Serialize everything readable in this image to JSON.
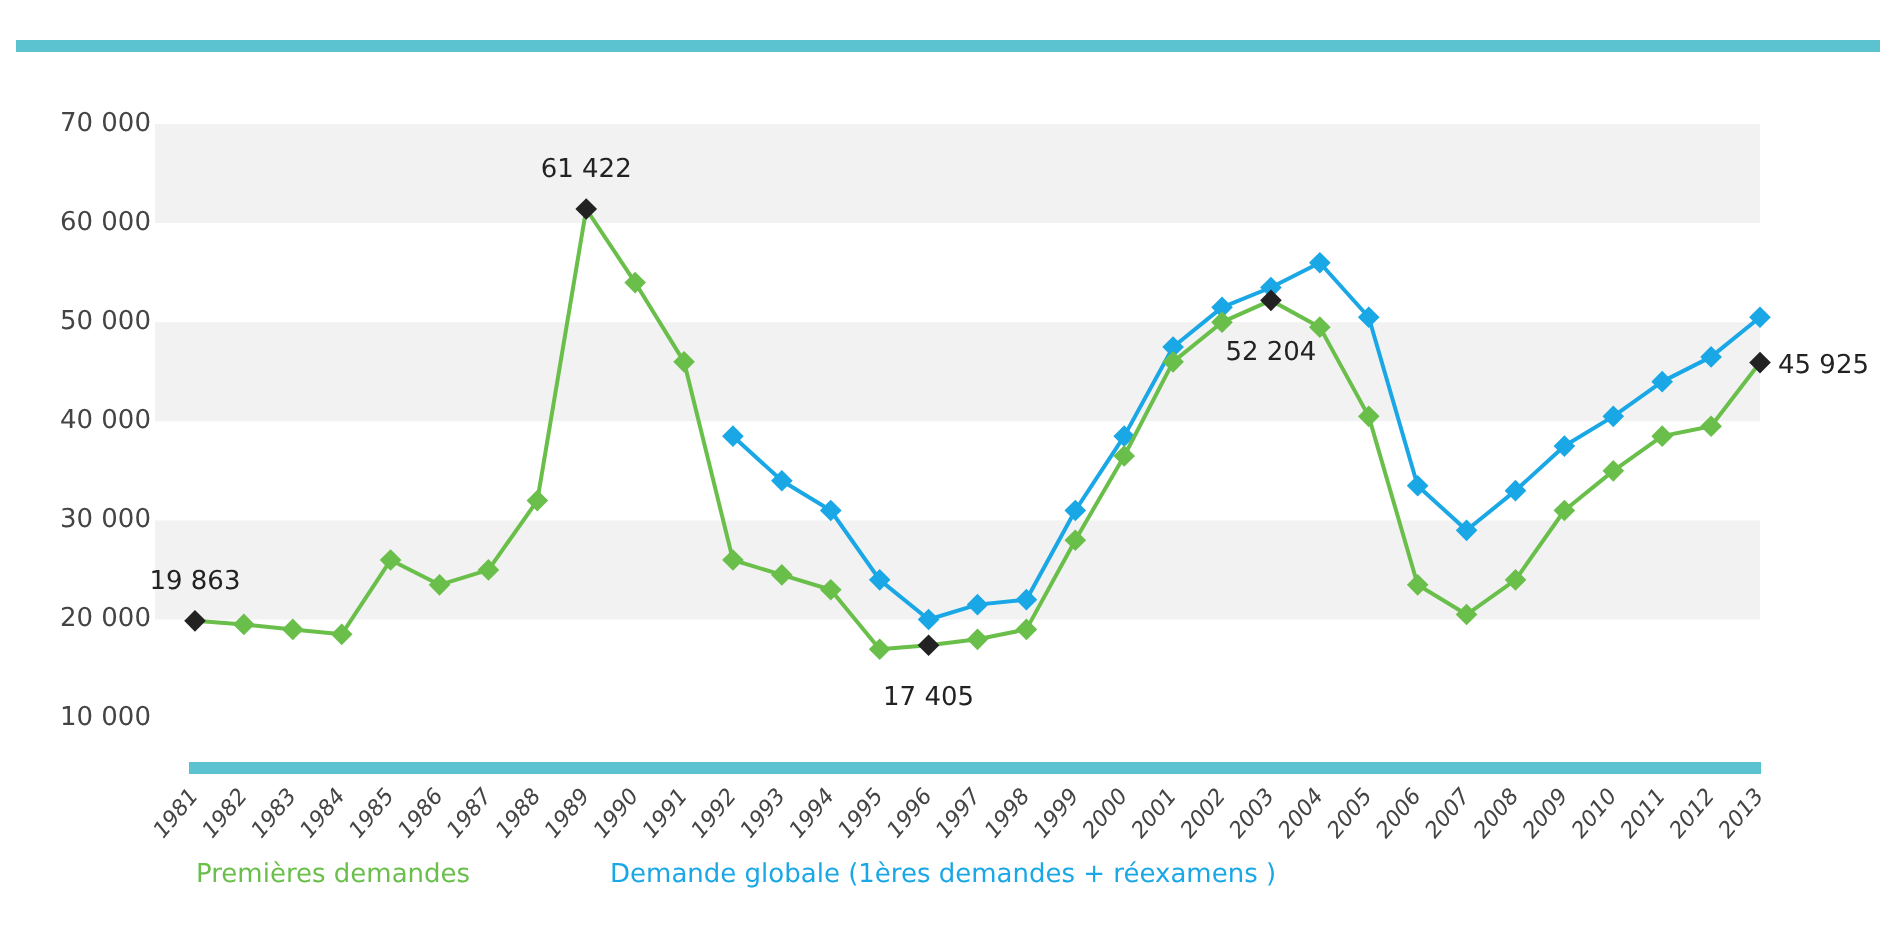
{
  "chart_data": {
    "type": "line",
    "categories": [
      "1981",
      "1982",
      "1983",
      "1984",
      "1985",
      "1986",
      "1987",
      "1988",
      "1989",
      "1990",
      "1991",
      "1992",
      "1993",
      "1994",
      "1995",
      "1996",
      "1997",
      "1998",
      "1999",
      "2000",
      "2001",
      "2002",
      "2003",
      "2004",
      "2005",
      "2006",
      "2007",
      "2008",
      "2009",
      "2010",
      "2011",
      "2012",
      "2013"
    ],
    "series": [
      {
        "name": "Premières demandes",
        "color": "#6abf4b",
        "values": [
          19863,
          19500,
          19000,
          18500,
          26000,
          23500,
          25000,
          32000,
          61422,
          54000,
          46000,
          26000,
          24500,
          23000,
          17000,
          17405,
          18000,
          19000,
          28000,
          36500,
          46000,
          50000,
          52204,
          49500,
          40500,
          23500,
          20500,
          24000,
          31000,
          35000,
          38500,
          39500,
          45925
        ],
        "value_labels": [
          "19 863",
          null,
          null,
          null,
          null,
          null,
          null,
          null,
          "61 422",
          null,
          null,
          null,
          null,
          null,
          null,
          "17 405",
          null,
          null,
          null,
          null,
          null,
          null,
          "52 204",
          null,
          null,
          null,
          null,
          null,
          null,
          null,
          null,
          null,
          "45 925"
        ]
      },
      {
        "name": "Demande globale (1ères demandes + réexamens )",
        "color": "#1aa7e6",
        "values": [
          null,
          null,
          null,
          null,
          null,
          null,
          null,
          null,
          null,
          null,
          null,
          38500,
          34000,
          31000,
          24000,
          20000,
          21500,
          22000,
          31000,
          38500,
          47500,
          51500,
          53500,
          56000,
          50500,
          33500,
          29000,
          33000,
          37500,
          40500,
          44000,
          46500,
          50500
        ]
      }
    ],
    "ylim": [
      5000,
      70000
    ],
    "yticks": [
      {
        "value": 10000,
        "label": "10 000"
      },
      {
        "value": 20000,
        "label": "20 000"
      },
      {
        "value": 30000,
        "label": "30 000"
      },
      {
        "value": 40000,
        "label": "40 000"
      },
      {
        "value": 50000,
        "label": "50 000"
      },
      {
        "value": 60000,
        "label": "60 000"
      },
      {
        "value": 70000,
        "label": "70 000"
      }
    ],
    "bands": [
      {
        "axis": "y",
        "from": 20000,
        "to": 30000,
        "color": "#f2f2f2"
      },
      {
        "axis": "y",
        "from": 40000,
        "to": 50000,
        "color": "#f2f2f2"
      },
      {
        "axis": "y",
        "from": 60000,
        "to": 70000,
        "color": "#f2f2f2"
      }
    ],
    "marker": "diamond",
    "line_style": "solid",
    "legend": "bottom",
    "grid": false
  }
}
